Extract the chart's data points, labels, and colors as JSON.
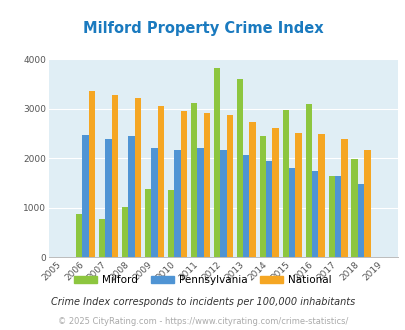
{
  "title": "Milford Property Crime Index",
  "years": [
    2005,
    2006,
    2007,
    2008,
    2009,
    2010,
    2011,
    2012,
    2013,
    2014,
    2015,
    2016,
    2017,
    2018,
    2019
  ],
  "milford": [
    0,
    870,
    775,
    1020,
    1380,
    1370,
    3120,
    3820,
    3600,
    2460,
    2980,
    3090,
    1640,
    1980,
    0
  ],
  "pennsylvania": [
    0,
    2480,
    2390,
    2460,
    2220,
    2170,
    2220,
    2160,
    2060,
    1950,
    1800,
    1740,
    1640,
    1490,
    0
  ],
  "national": [
    0,
    3360,
    3290,
    3230,
    3060,
    2960,
    2920,
    2880,
    2730,
    2610,
    2520,
    2490,
    2400,
    2170,
    0
  ],
  "milford_color": "#8dc63f",
  "pennsylvania_color": "#4f94d4",
  "national_color": "#f5a623",
  "bg_color": "#e0eef5",
  "ylim": [
    0,
    4000
  ],
  "yticks": [
    0,
    1000,
    2000,
    3000,
    4000
  ],
  "legend_labels": [
    "Milford",
    "Pennsylvania",
    "National"
  ],
  "footnote1": "Crime Index corresponds to incidents per 100,000 inhabitants",
  "footnote2": "© 2025 CityRating.com - https://www.cityrating.com/crime-statistics/",
  "title_color": "#1a7abf",
  "footnote1_color": "#333333",
  "footnote2_color": "#aaaaaa"
}
